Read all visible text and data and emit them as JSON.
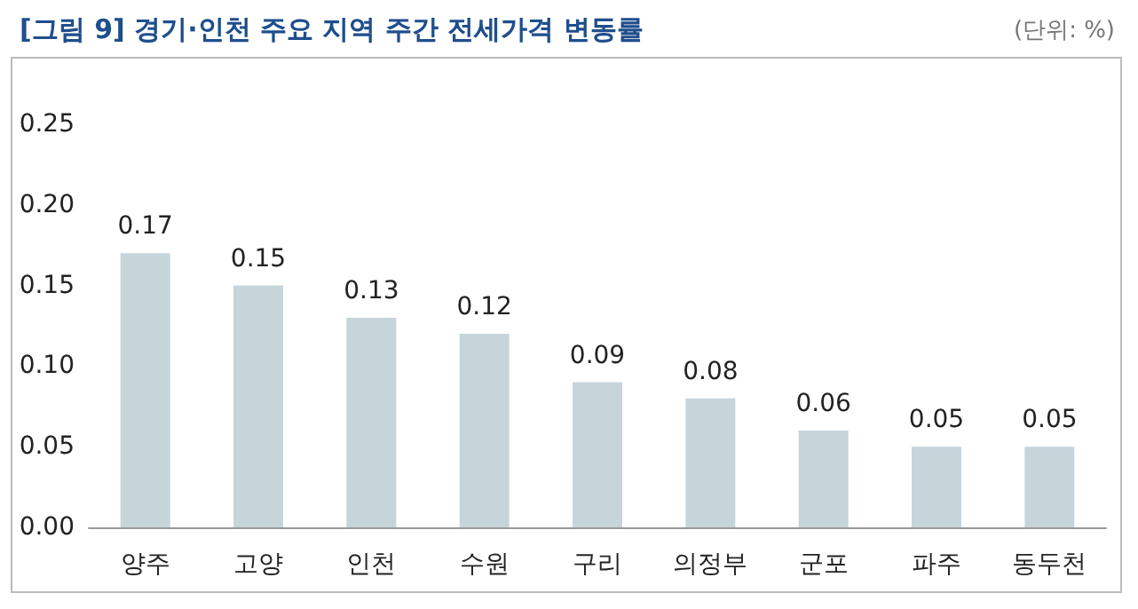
{
  "chart_data": {
    "type": "bar",
    "title": "[그림 9] 경기·인천 주요 지역 주간 전세가격 변동률",
    "annotations": [
      "(단위: %)"
    ],
    "categories": [
      "양주",
      "고양",
      "인천",
      "수원",
      "구리",
      "의정부",
      "군포",
      "파주",
      "동두천"
    ],
    "values": [
      0.17,
      0.15,
      0.13,
      0.12,
      0.09,
      0.08,
      0.06,
      0.05,
      0.05
    ],
    "color": "#c5d5da",
    "data_labels": true,
    "grid": false,
    "ylim": [
      0,
      0.25
    ],
    "yticks": [
      {
        "value": 0,
        "label": "0.00"
      },
      {
        "value": 0.05,
        "label": "0.05"
      },
      {
        "value": 0.1,
        "label": "0.10"
      },
      {
        "value": 0.15,
        "label": "0.15"
      },
      {
        "value": 0.2,
        "label": "0.20"
      },
      {
        "value": 0.25,
        "label": "0.25"
      }
    ]
  }
}
